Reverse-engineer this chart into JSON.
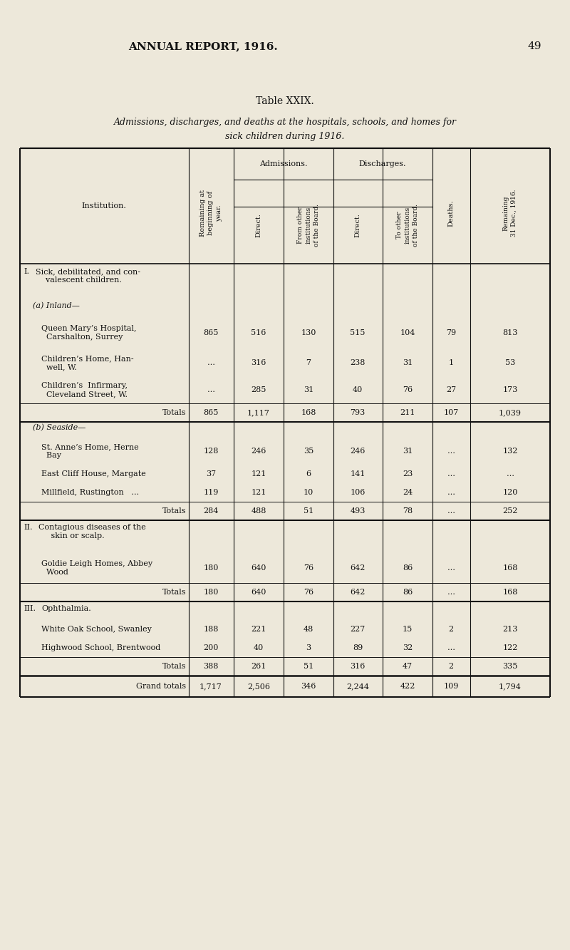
{
  "page_header": "ANNUAL REPORT, 1916.",
  "page_number": "49",
  "table_title": "Table XXIX.",
  "table_subtitle_line1": "Admissions, discharges, and deaths at the hospitals, schools, and homes for",
  "table_subtitle_line2": "sick children during 1916.",
  "bg_color": "#ede8da",
  "text_color": "#111111",
  "table_border_color": "#111111",
  "col_headers": [
    "Institution.",
    "Remaining at\nbeginning of\nyear.",
    "Direct.",
    "From other\ninstitutions\nof the Board.",
    "Direct.",
    "To other\ninstitutions\nof the Board.",
    "Deaths.",
    "Remaining\n31 Dec., 1916."
  ]
}
